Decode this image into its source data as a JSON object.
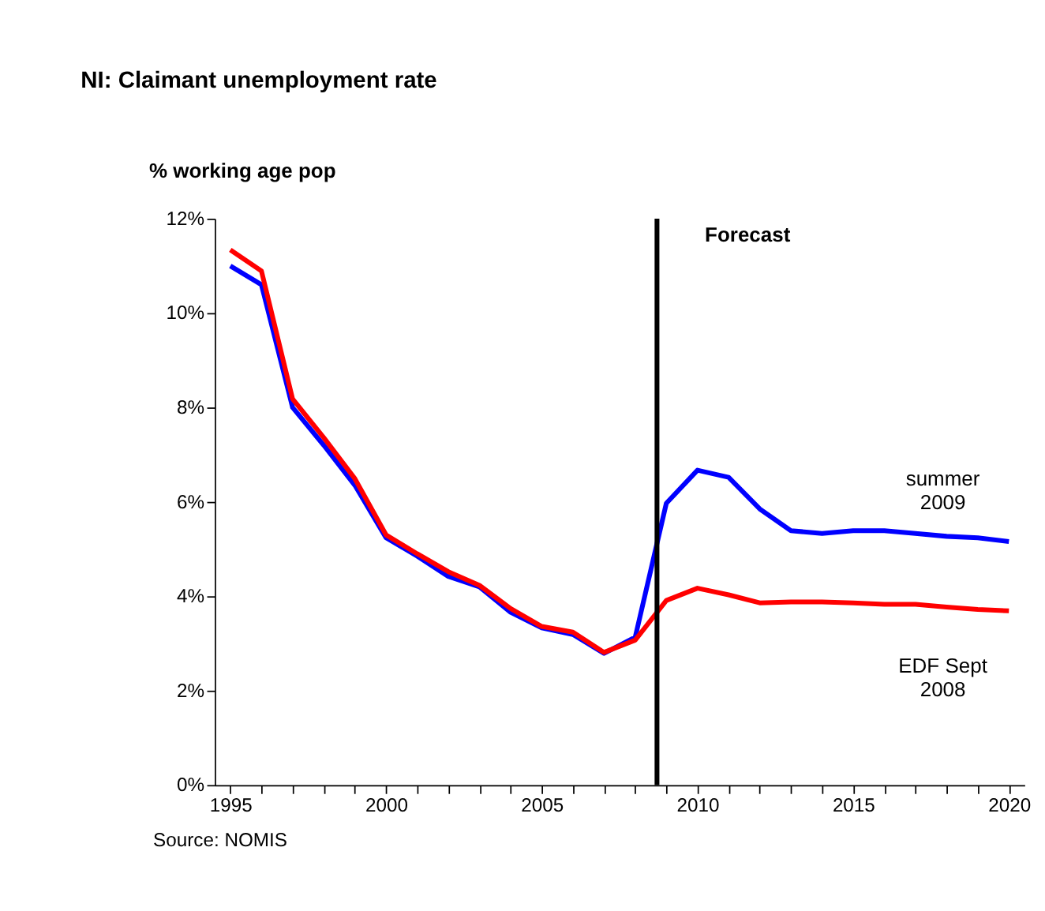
{
  "chart_data": {
    "type": "line",
    "title": "NI: Claimant unemployment rate",
    "ylabel": "% working age pop",
    "x": [
      1995,
      1996,
      1997,
      1998,
      1999,
      2000,
      2001,
      2002,
      2003,
      2004,
      2005,
      2006,
      2007,
      2008,
      2009,
      2010,
      2011,
      2012,
      2013,
      2014,
      2015,
      2016,
      2017,
      2018,
      2019,
      2020
    ],
    "series": [
      {
        "name": "summer 2009",
        "color": "#0000ff",
        "values": [
          11.0,
          10.6,
          8.0,
          7.2,
          6.35,
          5.24,
          4.85,
          4.42,
          4.2,
          3.66,
          3.33,
          3.19,
          2.79,
          3.13,
          5.97,
          6.67,
          6.52,
          5.85,
          5.39,
          5.33,
          5.39,
          5.39,
          5.33,
          5.27,
          5.24,
          5.16
        ]
      },
      {
        "name": "EDF Sept 2008",
        "color": "#ff0000",
        "values": [
          11.34,
          10.89,
          8.18,
          7.36,
          6.49,
          5.3,
          4.9,
          4.52,
          4.23,
          3.74,
          3.36,
          3.24,
          2.81,
          3.07,
          3.91,
          4.17,
          4.03,
          3.86,
          3.88,
          3.88,
          3.86,
          3.83,
          3.83,
          3.77,
          3.72,
          3.69
        ]
      }
    ],
    "xlim": [
      1994.5,
      2020.5
    ],
    "xticks": [
      1995,
      {
        "value": 1996,
        "label": null
      },
      {
        "value": 1997,
        "label": null
      },
      {
        "value": 1998,
        "label": null
      },
      {
        "value": 1999,
        "label": null
      },
      2000,
      {
        "value": 2001,
        "label": null
      },
      {
        "value": 2002,
        "label": null
      },
      {
        "value": 2003,
        "label": null
      },
      {
        "value": 2004,
        "label": null
      },
      2005,
      {
        "value": 2006,
        "label": null
      },
      {
        "value": 2007,
        "label": null
      },
      {
        "value": 2008,
        "label": null
      },
      {
        "value": 2009,
        "label": null
      },
      2010,
      {
        "value": 2011,
        "label": null
      },
      {
        "value": 2012,
        "label": null
      },
      {
        "value": 2013,
        "label": null
      },
      {
        "value": 2014,
        "label": null
      },
      2015,
      {
        "value": 2016,
        "label": null
      },
      {
        "value": 2017,
        "label": null
      },
      {
        "value": 2018,
        "label": null
      },
      {
        "value": 2019,
        "label": null
      },
      2020
    ],
    "ylim": [
      0,
      12
    ],
    "yticks": [
      {
        "value": 0,
        "label": "0%"
      },
      {
        "value": 2,
        "label": "2%"
      },
      {
        "value": 4,
        "label": "4%"
      },
      {
        "value": 6,
        "label": "6%"
      },
      {
        "value": 8,
        "label": "8%"
      },
      {
        "value": 10,
        "label": "10%"
      },
      {
        "value": 12,
        "label": "12%"
      }
    ],
    "ref_lines": [
      {
        "axis": "x",
        "value": 2008.7,
        "label": "Forecast",
        "color": "#000000"
      }
    ],
    "annotations": [
      "Source: NOMIS"
    ],
    "grid": false,
    "legend": false,
    "marker": "none",
    "line_style": "solid"
  }
}
